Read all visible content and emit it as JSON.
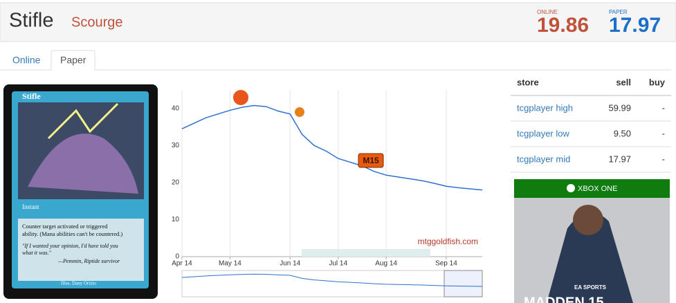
{
  "header": {
    "title": "Stifle",
    "set": "Scourge",
    "online_label": "ONLINE",
    "online_price": "19.86",
    "paper_label": "PAPER",
    "paper_price": "17.97"
  },
  "tabs": [
    "Online",
    "Paper"
  ],
  "card": {
    "name": "Stifle",
    "type_line": "Instant",
    "rules": [
      "Counter target activated or triggered",
      "ability. (Mana abilities can't be countered.)"
    ],
    "flavor": [
      "\"If I wanted your opinion, I'd have told you",
      "what it was.\"",
      "—Pemmin, Riptide survivor"
    ],
    "artist": "Illus. Dany Orizio"
  },
  "chart_data": {
    "type": "line",
    "watermark": "mtggoldfish.com",
    "event_label": "M15",
    "categories": [
      "Apr 14",
      null,
      null,
      null,
      "May 14",
      null,
      null,
      null,
      null,
      "Jun 14",
      null,
      null,
      null,
      "Jul 14",
      null,
      null,
      null,
      "Aug 14",
      null,
      null,
      null,
      null,
      "Sep 14",
      null,
      null,
      null
    ],
    "values": [
      34.5,
      36,
      37.5,
      38.5,
      39.5,
      40.3,
      40.8,
      40.5,
      39.3,
      38.5,
      33,
      30,
      28.5,
      26.5,
      25.5,
      24.5,
      23,
      22,
      21.5,
      21,
      20.5,
      19.8,
      19,
      18.6,
      18.3,
      18
    ],
    "color": "#2f6fd0",
    "ylim": [
      0,
      45
    ],
    "yticks": [
      0,
      10,
      20,
      30,
      40
    ],
    "grid": true
  },
  "price_table": {
    "headers": [
      "store",
      "sell",
      "buy"
    ],
    "rows": [
      [
        "tcgplayer high",
        "59.99",
        "-"
      ],
      [
        "tcgplayer low",
        "9.50",
        "-"
      ],
      [
        "tcgplayer mid",
        "17.97",
        "-"
      ]
    ]
  },
  "ad": {
    "platform": "XBOX ONE",
    "brand": "EA SPORTS",
    "game": "MADDEN 15"
  }
}
